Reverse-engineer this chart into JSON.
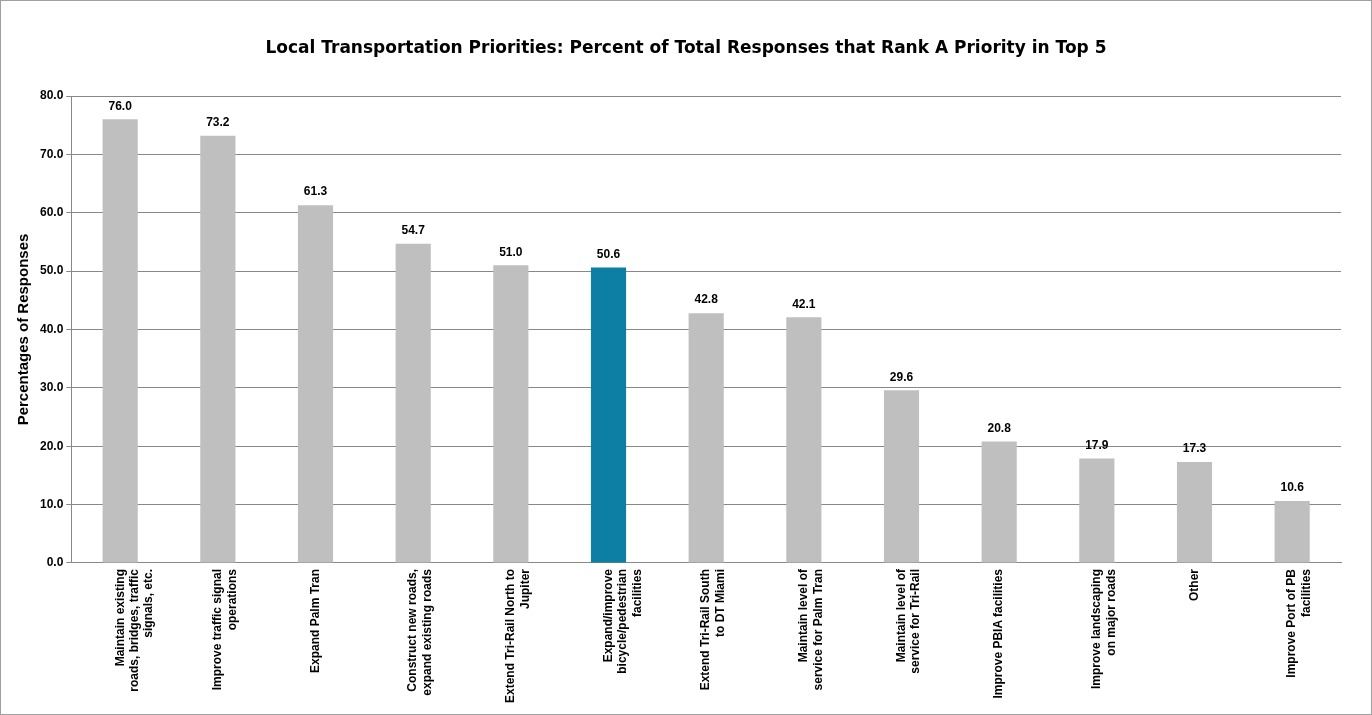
{
  "chart_data": {
    "type": "bar",
    "title": "Local Transportation Priorities: Percent of Total Responses that Rank A Priority in Top 5",
    "ylabel": "Percentages of Responses",
    "categories": [
      "Maintain existing roads, bridges, traffic signals, etc.",
      "Improve traffic signal operations",
      "Expand Palm Tran",
      "Construct new roads, expand existing roads",
      "Extend Tri-Rail North to Jupiter",
      "Expand/improve bicycle/pedestrian facilities",
      "Extend Tri-Rail South to DT Miami",
      "Maintain level of service for Palm Tran",
      "Maintain level of service for Tri-Rail",
      "Improve PBIA facilities",
      "Improve landscaping on major roads",
      "Other",
      "Improve Port of PB facilities"
    ],
    "values": [
      76.0,
      73.2,
      61.3,
      54.7,
      51.0,
      50.6,
      42.8,
      42.1,
      29.6,
      20.8,
      17.9,
      17.3,
      10.6
    ],
    "value_labels": [
      "76.0",
      "73.2",
      "61.3",
      "54.7",
      "51.0",
      "50.6",
      "42.8",
      "42.1",
      "29.6",
      "20.8",
      "17.9",
      "17.3",
      "10.6"
    ],
    "colors": [
      "#bfbfbf",
      "#bfbfbf",
      "#bfbfbf",
      "#bfbfbf",
      "#bfbfbf",
      "#0e7fa4",
      "#bfbfbf",
      "#bfbfbf",
      "#bfbfbf",
      "#bfbfbf",
      "#bfbfbf",
      "#bfbfbf",
      "#bfbfbf"
    ],
    "ylim": [
      0,
      80
    ],
    "yticks": [
      {
        "value": 0,
        "label": "0.0"
      },
      {
        "value": 10,
        "label": "10.0"
      },
      {
        "value": 20,
        "label": "20.0"
      },
      {
        "value": 30,
        "label": "30.0"
      },
      {
        "value": 40,
        "label": "40.0"
      },
      {
        "value": 50,
        "label": "50.0"
      },
      {
        "value": 60,
        "label": "60.0"
      },
      {
        "value": 70,
        "label": "70.0"
      },
      {
        "value": 80,
        "label": "80.0"
      }
    ],
    "grid": "y",
    "legend": false
  }
}
